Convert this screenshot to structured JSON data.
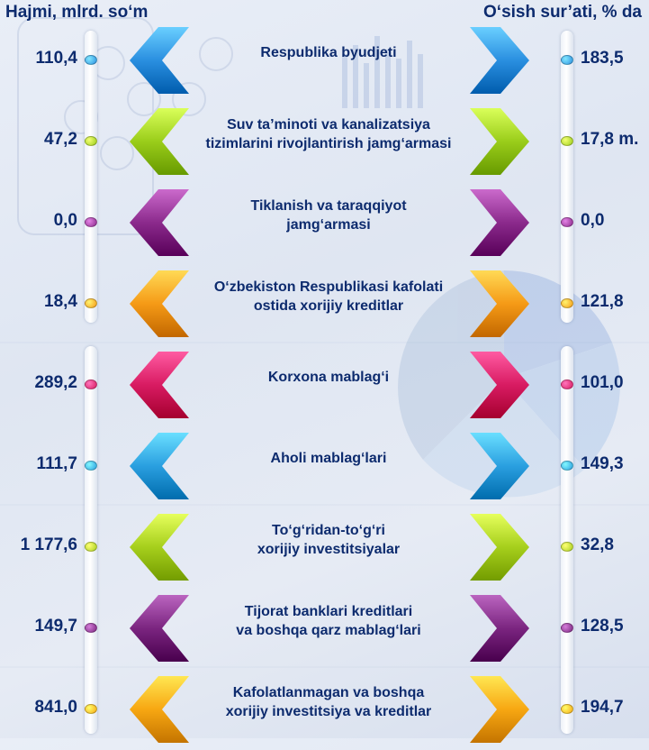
{
  "chart_data": {
    "type": "table",
    "column_headers": {
      "left": "Hajmi, mlrd. so‘m",
      "right": "O‘sish sur’ati, % da"
    },
    "rows": [
      {
        "category": "Respublika byudjeti",
        "lines": [
          "Respublika byudjeti"
        ],
        "volume": "110,4",
        "growth": "183,5",
        "color": "#2a8fe0"
      },
      {
        "category": "Suv ta’minoti va kanalizatsiya tizimlarini rivojlantirish jamg‘armasi",
        "lines": [
          "Suv ta’minoti va kanalizatsiya",
          "tizimlarini rivojlantirish jamg‘armasi"
        ],
        "volume": "47,2",
        "growth": "17,8 m.",
        "color": "#9acd1a"
      },
      {
        "category": "Tiklanish va taraqqiyot jamg‘armasi",
        "lines": [
          "Tiklanish va taraqqiyot",
          "jamg‘armasi"
        ],
        "volume": "0,0",
        "growth": "0,0",
        "color": "#8b2a8c"
      },
      {
        "category": "O‘zbekiston Respublikasi kafolati ostida xorijiy kreditlar",
        "lines": [
          "O‘zbekiston Respublikasi kafolati",
          "ostida xorijiy kreditlar"
        ],
        "volume": "18,4",
        "growth": "121,8",
        "color": "#f59a16"
      },
      {
        "category": "Korxona mablag‘i",
        "lines": [
          "Korxona mablag‘i"
        ],
        "volume": "289,2",
        "growth": "101,0",
        "color": "#d81b62"
      },
      {
        "category": "Aholi mablag‘lari",
        "lines": [
          "Aholi mablag‘lari"
        ],
        "volume": "111,7",
        "growth": "149,3",
        "color": "#2a9fe0"
      },
      {
        "category": "To‘g‘ridan-to‘g‘ri xorijiy investitsiyalar",
        "lines": [
          "To‘g‘ridan-to‘g‘ri",
          "xorijiy investitsiyalar"
        ],
        "volume": "1 177,6",
        "growth": "32,8",
        "color": "#a6cf1c"
      },
      {
        "category": "Tijorat banklari kreditlari va boshqa qarz mablag‘lari",
        "lines": [
          "Tijorat banklari kreditlari",
          "va  boshqa qarz mablag‘lari"
        ],
        "volume": "149,7",
        "growth": "128,5",
        "color": "#7b2580"
      },
      {
        "category": "Kafolatlanmagan va boshqa xorijiy investitsiya va kreditlar",
        "lines": [
          "Kafolatlanmagan va boshqa",
          "xorijiy investitsiya va kreditlar"
        ],
        "volume": "841,0",
        "growth": "194,7",
        "color": "#f7a712"
      }
    ]
  }
}
